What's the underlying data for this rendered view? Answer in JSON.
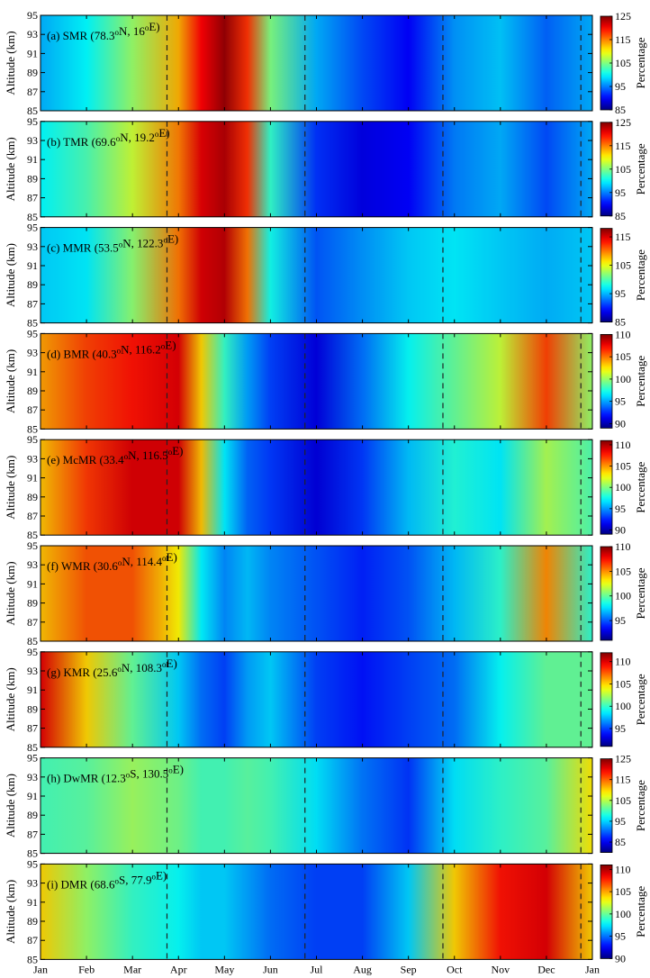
{
  "chart_data": {
    "type": "heatmap",
    "x_axis": {
      "tick_labels": [
        "Jan",
        "Feb",
        "Mar",
        "Apr",
        "May",
        "Jun",
        "Jul",
        "Aug",
        "Sep",
        "Oct",
        "Nov",
        "Dec",
        "Jan"
      ],
      "range_months": [
        0,
        12
      ]
    },
    "y_axis": {
      "label": "Altitude (km)",
      "ticks": [
        85,
        87,
        89,
        91,
        93,
        95
      ],
      "range": [
        85,
        95
      ]
    },
    "colorbar_label": "Percentage",
    "colormap": "jet",
    "dashed_lines_months": [
      2.75,
      5.75,
      8.75,
      11.75
    ],
    "panels": [
      {
        "label": "(a) SMR (78.3°N, 16°E)",
        "station": "SMR",
        "lat": "78.3",
        "lat_hem": "N",
        "lon": "16",
        "lon_hem": "E",
        "clim": [
          85,
          125
        ],
        "cbar_ticks": [
          85,
          95,
          105,
          115,
          125
        ],
        "profile_months": [
          0,
          1,
          2,
          3,
          3.5,
          4,
          4.5,
          5,
          6,
          7,
          8,
          9,
          10,
          11,
          12
        ],
        "profile_values": [
          97,
          100,
          106,
          113,
          120,
          124,
          118,
          105,
          97,
          93,
          90,
          96,
          98,
          94,
          97
        ]
      },
      {
        "label": "(b) TMR (69.6°N, 19.2°E)",
        "station": "TMR",
        "lat": "69.6",
        "lat_hem": "N",
        "lon": "19.2",
        "lon_hem": "E",
        "clim": [
          85,
          125
        ],
        "cbar_ticks": [
          85,
          95,
          105,
          115,
          125
        ],
        "profile_months": [
          0,
          1,
          2,
          3,
          3.5,
          4,
          4.5,
          5,
          6,
          7,
          8,
          9,
          10,
          11,
          12
        ],
        "profile_values": [
          100,
          103,
          108,
          115,
          121,
          123,
          118,
          102,
          92,
          89,
          90,
          95,
          97,
          93,
          97
        ]
      },
      {
        "label": "(c) MMR (53.5°N, 122.3°E)",
        "station": "MMR",
        "lat": "53.5",
        "lat_hem": "N",
        "lon": "122.3",
        "lon_hem": "E",
        "clim": [
          85,
          118
        ],
        "cbar_ticks": [
          85,
          95,
          105,
          115
        ],
        "profile_months": [
          0,
          1,
          2,
          3,
          3.5,
          4,
          4.5,
          5,
          6,
          7,
          8,
          9,
          10,
          11,
          12
        ],
        "profile_values": [
          96,
          97,
          102,
          110,
          115,
          116,
          110,
          98,
          92,
          94,
          96,
          97,
          96,
          95,
          96
        ]
      },
      {
        "label": "(d) BMR (40.3°N, 116.2°E)",
        "station": "BMR",
        "lat": "40.3",
        "lat_hem": "N",
        "lon": "116.2",
        "lon_hem": "E",
        "clim": [
          89,
          110
        ],
        "cbar_ticks": [
          90,
          95,
          100,
          105,
          110
        ],
        "profile_months": [
          0,
          1,
          2,
          3,
          3.5,
          4,
          4.5,
          5,
          6,
          7,
          8,
          9,
          10,
          11,
          12
        ],
        "profile_values": [
          104,
          106,
          107,
          108,
          103,
          98,
          95,
          93,
          91,
          94,
          97,
          99,
          101,
          106,
          100
        ]
      },
      {
        "label": "(e) McMR (33.4°N, 116.5°E)",
        "station": "McMR",
        "lat": "33.4",
        "lat_hem": "N",
        "lon": "116.5",
        "lon_hem": "E",
        "clim": [
          89,
          111
        ],
        "cbar_ticks": [
          90,
          95,
          100,
          105,
          110
        ],
        "profile_months": [
          0,
          1,
          2,
          3,
          3.5,
          4,
          4.5,
          5,
          6,
          7,
          8,
          9,
          10,
          11,
          12
        ],
        "profile_values": [
          104,
          107,
          109,
          109,
          104,
          97,
          94,
          93,
          91,
          93,
          96,
          98,
          97,
          101,
          99
        ]
      },
      {
        "label": "(f) WMR (30.6°N, 114.4°E)",
        "station": "WMR",
        "lat": "30.6",
        "lat_hem": "N",
        "lon": "114.4",
        "lon_hem": "E",
        "clim": [
          91,
          110
        ],
        "cbar_ticks": [
          95,
          100,
          105,
          110
        ],
        "profile_months": [
          0,
          1,
          2,
          3,
          3.5,
          4,
          4.5,
          5,
          6,
          7,
          8,
          9,
          10,
          11,
          12
        ],
        "profile_values": [
          104,
          106,
          106,
          103,
          98,
          96,
          97,
          96,
          95,
          94,
          95,
          97,
          99,
          105,
          99
        ]
      },
      {
        "label": "(g) KMR (25.6°N, 108.3°E)",
        "station": "KMR",
        "lat": "25.6",
        "lat_hem": "N",
        "lon": "108.3",
        "lon_hem": "E",
        "clim": [
          91,
          112
        ],
        "cbar_ticks": [
          95,
          100,
          105,
          110
        ],
        "profile_months": [
          0,
          1,
          2,
          3,
          3.5,
          4,
          4.5,
          5,
          6,
          7,
          8,
          9,
          10,
          11,
          12
        ],
        "profile_values": [
          110,
          105,
          101,
          98,
          96,
          95,
          97,
          98,
          95,
          94,
          95,
          96,
          99,
          101,
          101
        ]
      },
      {
        "label": "(h) DwMR (12.3°S, 130.5°E)",
        "station": "DwMR",
        "lat": "12.3",
        "lat_hem": "S",
        "lon": "130.5",
        "lon_hem": "E",
        "clim": [
          80,
          125
        ],
        "cbar_ticks": [
          85,
          95,
          105,
          115,
          125
        ],
        "profile_months": [
          0,
          1,
          2,
          3,
          3.5,
          4,
          4.5,
          5,
          6,
          7,
          8,
          9,
          10,
          11,
          12
        ],
        "profile_values": [
          100,
          101,
          104,
          102,
          100,
          100,
          101,
          100,
          96,
          91,
          88,
          96,
          99,
          101,
          109
        ]
      },
      {
        "label": "(i) DMR (68.6°S, 77.9°E)",
        "station": "DMR",
        "lat": "68.6",
        "lat_hem": "S",
        "lon": "77.9",
        "lon_hem": "E",
        "clim": [
          90,
          111
        ],
        "cbar_ticks": [
          90,
          95,
          100,
          105,
          110
        ],
        "profile_months": [
          0,
          1,
          2,
          3,
          3.5,
          4,
          4.5,
          5,
          6,
          7,
          8,
          9,
          10,
          11,
          12
        ],
        "profile_values": [
          104,
          101,
          99,
          98,
          97,
          97,
          96,
          95,
          94,
          94,
          97,
          104,
          108,
          109,
          104
        ]
      }
    ]
  }
}
